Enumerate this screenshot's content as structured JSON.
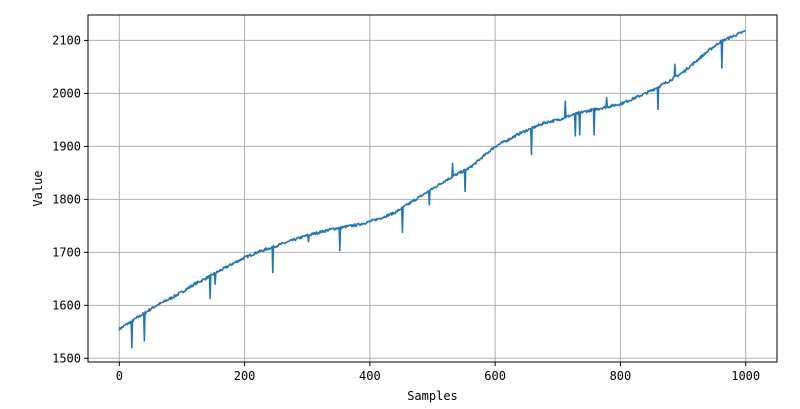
{
  "chart_data": {
    "type": "line",
    "title": "",
    "xlabel": "Samples",
    "ylabel": "Value",
    "xlim": [
      -50,
      1050
    ],
    "ylim": [
      1493,
      2148
    ],
    "xticks": [
      0,
      200,
      400,
      600,
      800,
      1000
    ],
    "yticks": [
      1500,
      1600,
      1700,
      1800,
      1900,
      2000,
      2100
    ],
    "grid": true,
    "legend": "none",
    "series": [
      {
        "color": "#1f77b4",
        "x": [
          0,
          10,
          20,
          30,
          40,
          50,
          60,
          80,
          100,
          120,
          140,
          160,
          180,
          200,
          220,
          240,
          260,
          280,
          300,
          320,
          340,
          360,
          380,
          400,
          420,
          440,
          460,
          480,
          500,
          520,
          540,
          560,
          580,
          600,
          620,
          640,
          660,
          680,
          700,
          720,
          740,
          760,
          780,
          800,
          820,
          840,
          860,
          880,
          900,
          920,
          940,
          960,
          980,
          1000
        ],
        "y": [
          1555,
          1563,
          1570,
          1578,
          1585,
          1593,
          1600,
          1612,
          1625,
          1640,
          1652,
          1665,
          1678,
          1690,
          1700,
          1708,
          1716,
          1724,
          1732,
          1738,
          1744,
          1748,
          1752,
          1758,
          1766,
          1775,
          1790,
          1805,
          1820,
          1835,
          1848,
          1860,
          1880,
          1900,
          1912,
          1925,
          1935,
          1945,
          1950,
          1958,
          1965,
          1970,
          1975,
          1980,
          1990,
          2000,
          2012,
          2025,
          2040,
          2060,
          2080,
          2098,
          2108,
          2118
        ],
        "spikes": [
          [
            20,
            1520
          ],
          [
            40,
            1533
          ],
          [
            145,
            1613
          ],
          [
            153,
            1640
          ],
          [
            245,
            1662
          ],
          [
            302,
            1720
          ],
          [
            352,
            1703
          ],
          [
            452,
            1738
          ],
          [
            495,
            1790
          ],
          [
            532,
            1868
          ],
          [
            552,
            1815
          ],
          [
            658,
            1885
          ],
          [
            712,
            1985
          ],
          [
            728,
            1920
          ],
          [
            735,
            1922
          ],
          [
            758,
            1922
          ],
          [
            778,
            1992
          ],
          [
            860,
            1970
          ],
          [
            887,
            2055
          ],
          [
            962,
            2048
          ]
        ]
      }
    ]
  }
}
